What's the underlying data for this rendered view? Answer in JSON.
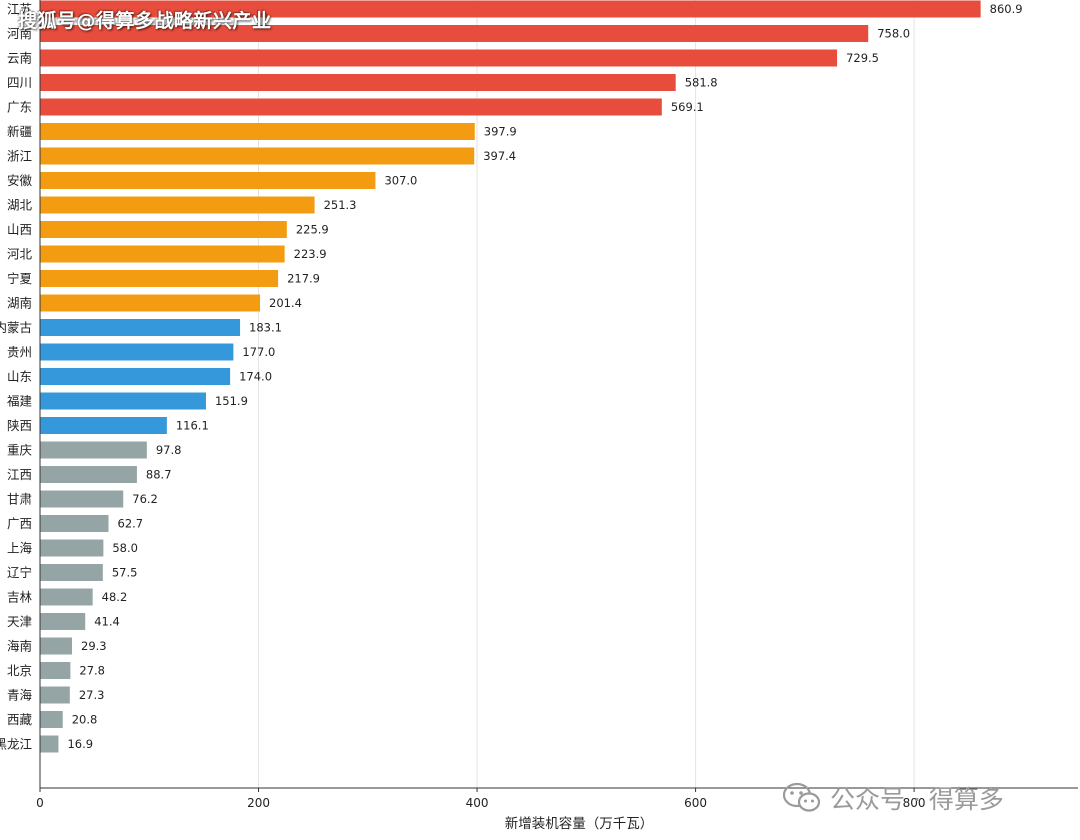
{
  "watermark_top": "搜狐号@得算多战略新兴产业",
  "watermark_bottom": "公众号 · 得算多",
  "chart_data": {
    "type": "bar",
    "orientation": "horizontal",
    "xlabel": "新增装机容量（万千瓦）",
    "xlim": [
      0,
      950
    ],
    "xticks": [
      0,
      200,
      400,
      600,
      800
    ],
    "grid": "vertical",
    "categories": [
      "江苏",
      "河南",
      "云南",
      "四川",
      "广东",
      "新疆",
      "浙江",
      "安徽",
      "湖北",
      "山西",
      "河北",
      "宁夏",
      "湖南",
      "内蒙古",
      "贵州",
      "山东",
      "福建",
      "陕西",
      "重庆",
      "江西",
      "甘肃",
      "广西",
      "上海",
      "辽宁",
      "吉林",
      "天津",
      "海南",
      "北京",
      "青海",
      "西藏",
      "黑龙江"
    ],
    "values": [
      860.9,
      758.0,
      729.5,
      581.8,
      569.1,
      397.9,
      397.4,
      307.0,
      251.3,
      225.9,
      223.9,
      217.9,
      201.4,
      183.1,
      177.0,
      174.0,
      151.9,
      116.1,
      97.8,
      88.7,
      76.2,
      62.7,
      58.0,
      57.5,
      48.2,
      41.4,
      29.3,
      27.8,
      27.3,
      20.8,
      16.9
    ],
    "tier_colors": {
      "top": "#e74c3c",
      "upper": "#f39c12",
      "middle": "#3498db",
      "lower": "#95a5a6"
    },
    "tiers": [
      "top",
      "top",
      "top",
      "top",
      "top",
      "upper",
      "upper",
      "upper",
      "upper",
      "upper",
      "upper",
      "upper",
      "upper",
      "middle",
      "middle",
      "middle",
      "middle",
      "middle",
      "lower",
      "lower",
      "lower",
      "lower",
      "lower",
      "lower",
      "lower",
      "lower",
      "lower",
      "lower",
      "lower",
      "lower",
      "lower"
    ]
  }
}
